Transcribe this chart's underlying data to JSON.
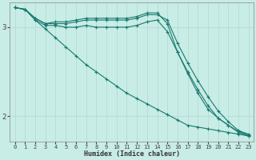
{
  "xlabel": "Humidex (Indice chaleur)",
  "bg_color": "#c8ece6",
  "line_color": "#1a7a6e",
  "grid_color": "#b0d8d0",
  "xlim": [
    -0.5,
    23.5
  ],
  "ylim": [
    1.72,
    3.28
  ],
  "yticks": [
    2,
    3
  ],
  "xticks": [
    0,
    1,
    2,
    3,
    4,
    5,
    6,
    7,
    8,
    9,
    10,
    11,
    12,
    13,
    14,
    15,
    16,
    17,
    18,
    19,
    20,
    21,
    22,
    23
  ],
  "lines": [
    {
      "x": [
        0,
        1,
        2,
        3,
        4,
        5,
        6,
        7,
        8,
        9,
        10,
        11,
        12,
        13,
        14,
        15,
        16,
        17,
        18,
        19,
        20,
        21,
        22,
        23
      ],
      "y": [
        3.22,
        3.2,
        3.08,
        2.98,
        2.88,
        2.78,
        2.68,
        2.58,
        2.5,
        2.42,
        2.34,
        2.26,
        2.2,
        2.14,
        2.08,
        2.02,
        1.96,
        1.9,
        1.88,
        1.86,
        1.84,
        1.82,
        1.8,
        1.78
      ]
    },
    {
      "x": [
        0,
        1,
        2,
        3,
        4,
        5,
        6,
        7,
        8,
        9,
        10,
        11,
        12,
        13,
        14,
        15,
        16,
        17,
        18,
        19,
        20,
        21,
        22,
        23
      ],
      "y": [
        3.22,
        3.2,
        3.08,
        3.02,
        3.02,
        3.0,
        3.0,
        3.02,
        3.0,
        3.0,
        3.0,
        3.0,
        3.02,
        3.06,
        3.08,
        2.95,
        2.72,
        2.5,
        2.3,
        2.12,
        1.98,
        1.9,
        1.82,
        1.78
      ]
    },
    {
      "x": [
        0,
        1,
        2,
        3,
        4,
        5,
        6,
        7,
        8,
        9,
        10,
        11,
        12,
        13,
        14,
        15,
        16,
        17,
        18,
        19,
        20,
        21,
        22,
        23
      ],
      "y": [
        3.22,
        3.2,
        3.1,
        3.04,
        3.04,
        3.04,
        3.06,
        3.08,
        3.08,
        3.08,
        3.08,
        3.08,
        3.1,
        3.14,
        3.14,
        3.08,
        2.82,
        2.6,
        2.4,
        2.22,
        2.06,
        1.94,
        1.84,
        1.8
      ]
    },
    {
      "x": [
        0,
        1,
        2,
        3,
        4,
        5,
        6,
        7,
        8,
        9,
        10,
        11,
        12,
        13,
        14,
        15,
        16,
        17,
        18,
        19,
        20,
        21,
        22,
        23
      ],
      "y": [
        3.22,
        3.2,
        3.1,
        3.04,
        3.06,
        3.06,
        3.08,
        3.1,
        3.1,
        3.1,
        3.1,
        3.1,
        3.12,
        3.16,
        3.16,
        3.04,
        2.72,
        2.48,
        2.26,
        2.08,
        1.98,
        1.9,
        1.83,
        1.79
      ]
    }
  ]
}
